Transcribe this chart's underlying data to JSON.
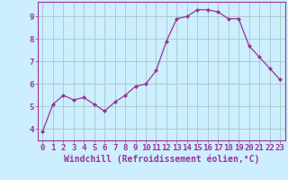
{
  "x": [
    0,
    1,
    2,
    3,
    4,
    5,
    6,
    7,
    8,
    9,
    10,
    11,
    12,
    13,
    14,
    15,
    16,
    17,
    18,
    19,
    20,
    21,
    22,
    23
  ],
  "y": [
    3.9,
    5.1,
    5.5,
    5.3,
    5.4,
    5.1,
    4.8,
    5.2,
    5.5,
    5.9,
    6.0,
    6.6,
    7.9,
    8.9,
    9.0,
    9.3,
    9.3,
    9.2,
    8.9,
    8.9,
    7.7,
    7.2,
    6.7,
    6.2
  ],
  "line_color": "#993399",
  "marker": "D",
  "marker_size": 2.0,
  "bg_color": "#cceeff",
  "grid_color": "#aacccc",
  "xlabel": "Windchill (Refroidissement éolien,°C)",
  "xlim": [
    -0.5,
    23.5
  ],
  "ylim": [
    3.5,
    9.65
  ],
  "yticks": [
    4,
    5,
    6,
    7,
    8,
    9
  ],
  "xticks": [
    0,
    1,
    2,
    3,
    4,
    5,
    6,
    7,
    8,
    9,
    10,
    11,
    12,
    13,
    14,
    15,
    16,
    17,
    18,
    19,
    20,
    21,
    22,
    23
  ],
  "xlabel_fontsize": 7.0,
  "tick_fontsize": 6.5,
  "line_color_label": "#660066",
  "spine_color": "#993399"
}
